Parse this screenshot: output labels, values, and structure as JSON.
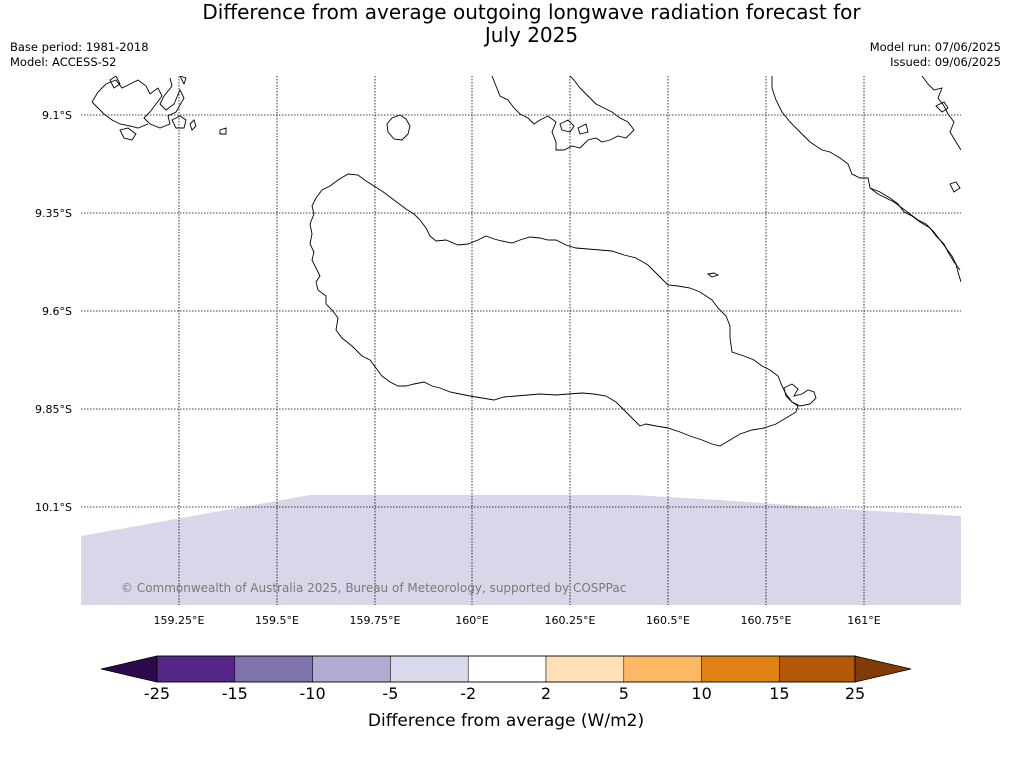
{
  "title": {
    "line1": "Difference from average outgoing longwave radiation forecast for",
    "line2": "July 2025"
  },
  "meta": {
    "base_period": "Base period: 1981-2018",
    "model": "Model: ACCESS-S2",
    "model_run": "Model run: 07/06/2025",
    "issued": "Issued: 09/06/2025"
  },
  "map": {
    "lat_labels": [
      "9.1°S",
      "9.35°S",
      "9.6°S",
      "9.85°S",
      "10.1°S"
    ],
    "lon_labels": [
      "159.25°E",
      "159.5°E",
      "159.75°E",
      "160°E",
      "160.25°E",
      "160.5°E",
      "160.75°E",
      "161°E"
    ],
    "copyright": "© Commonwealth of Australia 2025, Bureau of Meteorology, supported by COSPPac",
    "anomaly_fill_color": "#d7d7e9",
    "coastline_color": "#000000"
  },
  "colorbar": {
    "title": "Difference from average (W/m2)",
    "tick_labels": [
      "-25",
      "-15",
      "-10",
      "-5",
      "-2",
      "2",
      "5",
      "10",
      "15",
      "25"
    ],
    "colors": [
      "#2d0a4e",
      "#542788",
      "#8073ac",
      "#b2abd2",
      "#d8daeb",
      "#ffffff",
      "#fee0b6",
      "#fdb863",
      "#e08214",
      "#b35806",
      "#7f3b08"
    ]
  }
}
